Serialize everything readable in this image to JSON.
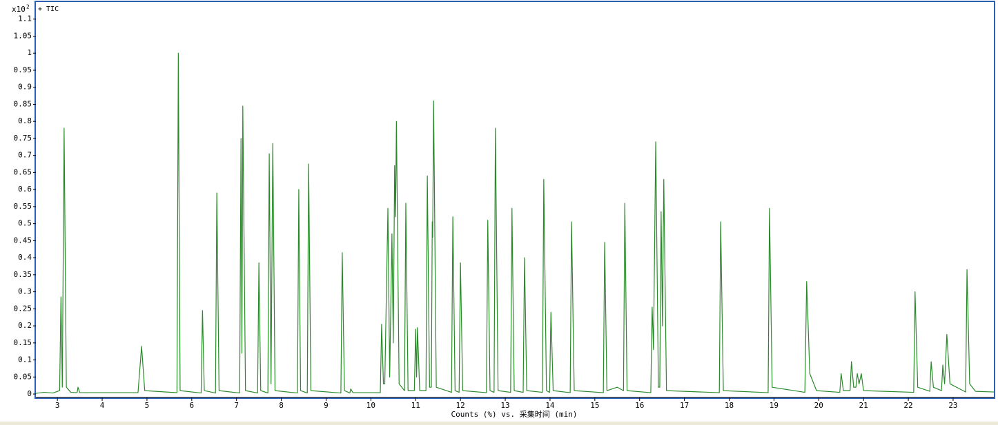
{
  "chart_data": {
    "type": "line",
    "legend_label": "+ TIC",
    "y_scale_label": "x10",
    "y_scale_exponent": "2",
    "x_label": "Counts (%) vs. 采集时间 (min)",
    "xlim": [
      2.52,
      23.91
    ],
    "xticks": [
      3,
      4,
      5,
      6,
      7,
      8,
      9,
      10,
      11,
      12,
      13,
      14,
      15,
      16,
      17,
      18,
      19,
      20,
      21,
      22,
      23
    ],
    "ylim": [
      -0.01,
      1.15
    ],
    "yticks": [
      0,
      0.05,
      0.1,
      0.15,
      0.2,
      0.25,
      0.3,
      0.35,
      0.4,
      0.45,
      0.5,
      0.55,
      0.6,
      0.65,
      0.7,
      0.75,
      0.8,
      0.85,
      0.9,
      0.95,
      1,
      1.05,
      1.1
    ],
    "x": [
      2.52,
      2.7,
      2.9,
      3.05,
      3.08,
      3.11,
      3.15,
      3.2,
      3.3,
      3.44,
      3.46,
      3.5,
      4.8,
      4.88,
      4.95,
      5.67,
      5.7,
      5.74,
      6.21,
      6.24,
      6.28,
      6.53,
      6.56,
      6.61,
      7.07,
      7.1,
      7.12,
      7.14,
      7.2,
      7.47,
      7.5,
      7.54,
      7.7,
      7.73,
      7.77,
      7.81,
      7.86,
      8.36,
      8.39,
      8.43,
      8.58,
      8.61,
      8.66,
      9.33,
      9.36,
      9.41,
      9.53,
      9.55,
      9.6,
      10.21,
      10.24,
      10.28,
      10.31,
      10.38,
      10.42,
      10.47,
      10.5,
      10.53,
      10.55,
      10.57,
      10.63,
      10.75,
      10.78,
      10.83,
      10.97,
      11.0,
      11.02,
      11.04,
      11.09,
      11.23,
      11.26,
      11.31,
      11.35,
      11.37,
      11.38,
      11.4,
      11.46,
      11.8,
      11.83,
      11.88,
      11.97,
      12.0,
      12.05,
      12.58,
      12.61,
      12.66,
      12.75,
      12.78,
      12.84,
      13.12,
      13.15,
      13.2,
      13.4,
      13.43,
      13.48,
      13.83,
      13.86,
      13.92,
      13.99,
      14.02,
      14.07,
      14.45,
      14.48,
      14.54,
      15.19,
      15.22,
      15.27,
      15.5,
      15.64,
      15.67,
      15.72,
      16.25,
      16.28,
      16.31,
      16.36,
      16.42,
      16.45,
      16.48,
      16.51,
      16.54,
      16.6,
      17.78,
      17.81,
      17.87,
      18.87,
      18.9,
      18.96,
      19.69,
      19.73,
      19.8,
      19.95,
      20.47,
      20.5,
      20.55,
      20.7,
      20.73,
      20.78,
      20.83,
      20.86,
      20.9,
      20.95,
      21.0,
      22.12,
      22.15,
      22.21,
      22.48,
      22.51,
      22.56,
      22.74,
      22.77,
      22.81,
      22.86,
      22.93,
      23.28,
      23.31,
      23.37,
      23.5,
      23.91
    ],
    "series": [
      {
        "name": "+ TIC",
        "color": "#2a8a2a",
        "values": [
          0.002,
          0.005,
          0.003,
          0.01,
          0.285,
          0.02,
          0.78,
          0.02,
          0.005,
          0.004,
          0.02,
          0.004,
          0.004,
          0.14,
          0.01,
          0.004,
          1.0,
          0.01,
          0.003,
          0.245,
          0.01,
          0.003,
          0.59,
          0.01,
          0.003,
          0.75,
          0.12,
          0.845,
          0.01,
          0.003,
          0.385,
          0.01,
          0.003,
          0.705,
          0.03,
          0.735,
          0.01,
          0.003,
          0.6,
          0.01,
          0.003,
          0.675,
          0.01,
          0.003,
          0.415,
          0.01,
          0.003,
          0.015,
          0.004,
          0.004,
          0.205,
          0.03,
          0.03,
          0.545,
          0.05,
          0.47,
          0.15,
          0.67,
          0.52,
          0.8,
          0.03,
          0.01,
          0.56,
          0.01,
          0.01,
          0.19,
          0.05,
          0.195,
          0.01,
          0.01,
          0.64,
          0.02,
          0.02,
          0.505,
          0.46,
          0.86,
          0.02,
          0.005,
          0.52,
          0.01,
          0.005,
          0.385,
          0.01,
          0.004,
          0.51,
          0.01,
          0.005,
          0.78,
          0.01,
          0.005,
          0.545,
          0.01,
          0.005,
          0.4,
          0.01,
          0.005,
          0.63,
          0.01,
          0.005,
          0.24,
          0.01,
          0.004,
          0.505,
          0.01,
          0.004,
          0.445,
          0.01,
          0.02,
          0.01,
          0.56,
          0.01,
          0.004,
          0.255,
          0.13,
          0.74,
          0.02,
          0.02,
          0.535,
          0.2,
          0.63,
          0.01,
          0.004,
          0.505,
          0.01,
          0.004,
          0.545,
          0.02,
          0.005,
          0.33,
          0.06,
          0.01,
          0.005,
          0.06,
          0.01,
          0.01,
          0.095,
          0.02,
          0.02,
          0.06,
          0.03,
          0.06,
          0.01,
          0.005,
          0.3,
          0.02,
          0.008,
          0.095,
          0.02,
          0.01,
          0.085,
          0.03,
          0.175,
          0.03,
          0.006,
          0.365,
          0.03,
          0.008,
          0.006
        ]
      }
    ]
  }
}
